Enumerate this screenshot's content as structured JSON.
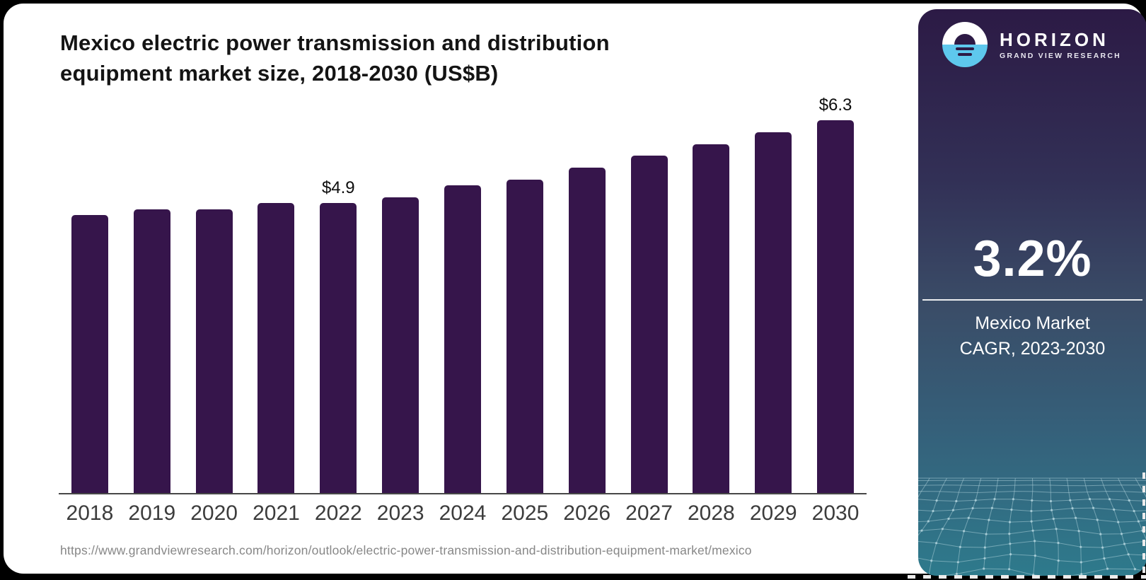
{
  "header": {
    "title": "Mexico electric power transmission and distribution\nequipment market size, 2018-2030 (US$B)"
  },
  "chart_data": {
    "type": "bar",
    "title": "Mexico electric power transmission and distribution equipment market size, 2018-2030 (US$B)",
    "categories": [
      "2018",
      "2019",
      "2020",
      "2021",
      "2022",
      "2023",
      "2024",
      "2025",
      "2026",
      "2027",
      "2028",
      "2029",
      "2030"
    ],
    "values": [
      4.7,
      4.8,
      4.8,
      4.9,
      4.9,
      5.0,
      5.2,
      5.3,
      5.5,
      5.7,
      5.9,
      6.1,
      6.3
    ],
    "data_labels": {
      "2022": "$4.9",
      "2030": "$6.3"
    },
    "xlabel": "",
    "ylabel": "",
    "ylim": [
      0,
      6.6
    ],
    "grid": false,
    "legend": "none",
    "bar_color": "#36154b",
    "axis_line_color": "#474747",
    "tick_label_color": "#3c3c3c"
  },
  "sidebar": {
    "brand_name": "HORIZON",
    "brand_subtitle": "GRAND VIEW RESEARCH",
    "stat_value": "3.2%",
    "stat_caption": "Mexico Market\nCAGR, 2023-2030",
    "logo_icon": "sunrise-over-water-icon",
    "colors": {
      "accent_blue": "#5ec8ed",
      "gradient_top": "#2c1a45",
      "gradient_bottom": "#2e7a8c",
      "mesh_line": "#b4d6de"
    }
  },
  "footer": {
    "source_url": "https://www.grandviewresearch.com/horizon/outlook/electric-power-transmission-and-distribution-equipment-market/mexico"
  }
}
